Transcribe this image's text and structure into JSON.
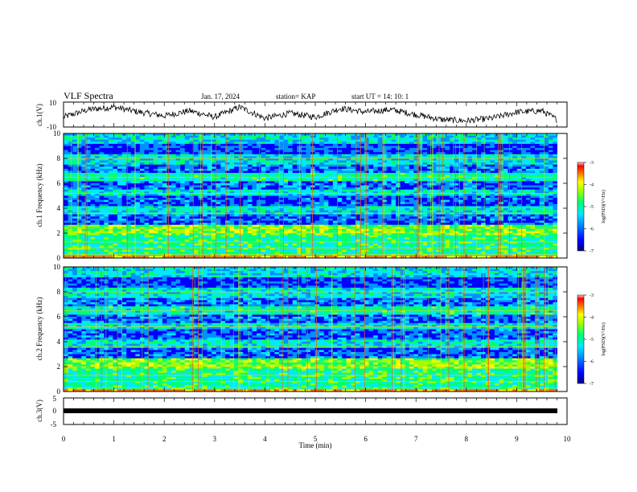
{
  "header": {
    "title": "VLF Spectra",
    "date": "Jan. 17, 2024",
    "station": "station= KAP",
    "start": "start  UT =   14: 10: 1"
  },
  "colors": {
    "colormap": [
      "#000080",
      "#0000ff",
      "#0080ff",
      "#00e0ff",
      "#00ff80",
      "#80ff00",
      "#ffff00",
      "#ff8000",
      "#ff0000",
      "#ffffff"
    ],
    "trace": "#000000"
  },
  "chart_data": [
    {
      "type": "line",
      "panel": "ch1-waveform",
      "ylabel": "ch.1(V)",
      "ylim": [
        -10,
        10
      ],
      "yticks": [
        "10",
        "-10"
      ],
      "xlim": [
        0,
        10
      ],
      "x": [
        0,
        0.5,
        1,
        1.5,
        2,
        2.5,
        3,
        3.5,
        4,
        4.5,
        5,
        5.5,
        6,
        6.5,
        7,
        7.5,
        8,
        8.5,
        9,
        9.5,
        9.8
      ],
      "y": [
        -2,
        4,
        6,
        2,
        -1,
        3,
        -2,
        6,
        -3,
        1,
        -2,
        5,
        2,
        4,
        0,
        -4,
        -5,
        -3,
        2,
        3,
        -4
      ]
    },
    {
      "type": "heatmap",
      "panel": "ch1-spectrogram",
      "ylabel": "ch.1 Frequency (kHz)",
      "xlim": [
        0,
        10
      ],
      "ylim": [
        0,
        10
      ],
      "yticks": [
        "0",
        "2",
        "4",
        "6",
        "8",
        "10"
      ],
      "colorbar": {
        "label": "log(PSD)(V²/Hz)",
        "ticks": [
          "-3",
          "-4",
          "-5",
          "-6",
          "-7"
        ],
        "range": [
          -7,
          -3
        ]
      }
    },
    {
      "type": "heatmap",
      "panel": "ch2-spectrogram",
      "ylabel": "ch.2 Frequency (kHz)",
      "xlim": [
        0,
        10
      ],
      "ylim": [
        0,
        10
      ],
      "yticks": [
        "0",
        "2",
        "4",
        "6",
        "8",
        "10"
      ],
      "colorbar": {
        "label": "log(PSD)(V²/Hz)",
        "ticks": [
          "-3",
          "-4",
          "-5",
          "-6",
          "-7"
        ],
        "range": [
          -7,
          -3
        ]
      }
    },
    {
      "type": "line",
      "panel": "ch3-waveform",
      "ylabel": "ch.3(V)",
      "ylim": [
        -5,
        5
      ],
      "yticks": [
        "5",
        "0",
        "-5"
      ],
      "xlim": [
        0,
        10
      ],
      "x": [
        0,
        9.8
      ],
      "y": [
        0,
        0
      ]
    }
  ],
  "xaxis": {
    "label": "Time  (min)",
    "ticks": [
      "0",
      "1",
      "2",
      "3",
      "4",
      "5",
      "6",
      "7",
      "8",
      "9",
      "10"
    ]
  }
}
